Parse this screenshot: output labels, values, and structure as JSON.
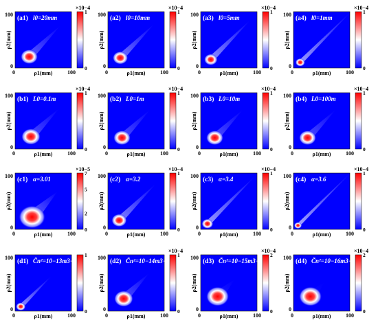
{
  "chart_data": {
    "type": "heatmap",
    "grid": false,
    "legend": "colorbar-right",
    "colormap": [
      "#0000ff",
      "#ffffff",
      "#ff0000"
    ],
    "xlabel": "ρ1(mm)",
    "ylabel": "ρ2(mm)",
    "xlim": [
      0,
      100
    ],
    "ylim": [
      0,
      100
    ],
    "x_ticks": [
      "0",
      "100"
    ],
    "y_ticks": [
      "0",
      "100"
    ],
    "panels": [
      {
        "id": "(a1)",
        "param": "l0=20mm",
        "colorbar_ticks": [
          "0",
          "1"
        ],
        "colorbar_exp": "×10−4",
        "hotspot": [
          25,
          20
        ],
        "spread": 9,
        "tail": 0.35,
        "tail_len": 55
      },
      {
        "id": "(a2)",
        "param": "l0=10mm",
        "colorbar_ticks": [
          "0",
          "1"
        ],
        "colorbar_exp": "×10−4",
        "hotspot": [
          22,
          18
        ],
        "spread": 8,
        "tail": 0.45,
        "tail_len": 60
      },
      {
        "id": "(a3)",
        "param": "l0=5mm",
        "colorbar_ticks": [
          "0",
          "1"
        ],
        "colorbar_exp": "×10−4",
        "hotspot": [
          18,
          15
        ],
        "spread": 7,
        "tail": 0.55,
        "tail_len": 70
      },
      {
        "id": "(a4)",
        "param": "l0=1mm",
        "colorbar_ticks": [
          "0",
          "1"
        ],
        "colorbar_exp": "×10−4",
        "hotspot": [
          12,
          10
        ],
        "spread": 5,
        "tail": 0.6,
        "tail_len": 90
      },
      {
        "id": "(b1)",
        "param": "L0=0.1m",
        "colorbar_ticks": [
          "0",
          "1"
        ],
        "colorbar_exp": "×10−4",
        "hotspot": [
          28,
          22
        ],
        "spread": 10,
        "tail": 0.3,
        "tail_len": 50
      },
      {
        "id": "(b2)",
        "param": "L0=1m",
        "colorbar_ticks": [
          "0",
          "1"
        ],
        "colorbar_exp": "×10−4",
        "hotspot": [
          25,
          20
        ],
        "spread": 9,
        "tail": 0.3,
        "tail_len": 50
      },
      {
        "id": "(b3)",
        "param": "L0=10m",
        "colorbar_ticks": [
          "0",
          "1"
        ],
        "colorbar_exp": "×10−4",
        "hotspot": [
          25,
          20
        ],
        "spread": 9,
        "tail": 0.3,
        "tail_len": 50
      },
      {
        "id": "(b4)",
        "param": "L0=100m",
        "colorbar_ticks": [
          "0",
          "1"
        ],
        "colorbar_exp": "×10−4",
        "hotspot": [
          25,
          20
        ],
        "spread": 9,
        "tail": 0.3,
        "tail_len": 50
      },
      {
        "id": "(c1)",
        "param": "α=3.01",
        "colorbar_ticks": [
          "0",
          "2",
          "5",
          "7"
        ],
        "colorbar_exp": "×10−5",
        "hotspot": [
          30,
          22
        ],
        "spread": 14,
        "tail": 0.4,
        "tail_len": 45
      },
      {
        "id": "(c2)",
        "param": "α=3.2",
        "colorbar_ticks": [
          "0",
          "1"
        ],
        "colorbar_exp": "×10−4",
        "hotspot": [
          20,
          16
        ],
        "spread": 8,
        "tail": 0.5,
        "tail_len": 65
      },
      {
        "id": "(c3)",
        "param": "α=3.4",
        "colorbar_ticks": [
          "0",
          "1"
        ],
        "colorbar_exp": "×10−4",
        "hotspot": [
          12,
          10
        ],
        "spread": 6,
        "tail": 0.6,
        "tail_len": 85
      },
      {
        "id": "(c4)",
        "param": "α=3.6",
        "colorbar_ticks": [
          "0",
          "1"
        ],
        "colorbar_exp": "×10−4",
        "hotspot": [
          8,
          7
        ],
        "spread": 4,
        "tail": 0.65,
        "tail_len": 95
      },
      {
        "id": "(d1)",
        "param": "C̃n²=10−13m3−α",
        "colorbar_ticks": [
          "0",
          "1"
        ],
        "colorbar_exp": "",
        "hotspot": [
          10,
          8
        ],
        "spread": 5,
        "tail": 0.55,
        "tail_len": 55
      },
      {
        "id": "(d2)",
        "param": "C̃n²=10−14m3−α",
        "colorbar_ticks": [
          "0",
          "1"
        ],
        "colorbar_exp": "×10−4",
        "hotspot": [
          28,
          22
        ],
        "spread": 10,
        "tail": 0.3,
        "tail_len": 45
      },
      {
        "id": "(d3)",
        "param": "C̃n²=10−15m3−α",
        "colorbar_ticks": [
          "0",
          "2"
        ],
        "colorbar_exp": "×10−4",
        "hotspot": [
          30,
          26
        ],
        "spread": 12,
        "tail": 0.1,
        "tail_len": 30
      },
      {
        "id": "(d4)",
        "param": "C̃n²=10−16m3−α",
        "colorbar_ticks": [
          "0",
          "2"
        ],
        "colorbar_exp": "×10−4",
        "hotspot": [
          30,
          26
        ],
        "spread": 12,
        "tail": 0.05,
        "tail_len": 25
      }
    ]
  }
}
